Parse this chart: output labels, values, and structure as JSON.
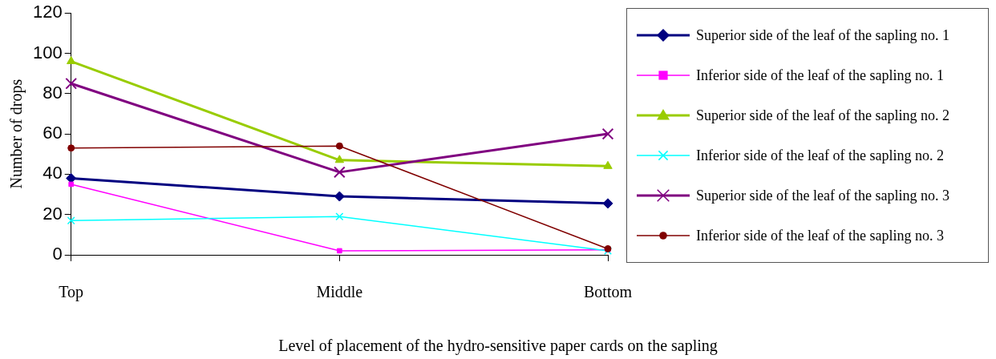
{
  "chart_data": {
    "type": "line",
    "xlabel": "Level of placement of the hydro-sensitive paper cards on the sapling",
    "ylabel": "Number of drops",
    "categories": [
      "Top",
      "Middle",
      "Bottom"
    ],
    "ylim": [
      0,
      120
    ],
    "yticks": [
      0,
      20,
      40,
      60,
      80,
      100,
      120
    ],
    "grid": false,
    "legend": "right",
    "series": [
      {
        "name": "Superior side of the leaf of the sapling no. 1",
        "color": "#000080",
        "marker": "diamond",
        "values": [
          38,
          29,
          25.5
        ]
      },
      {
        "name": "Inferior side of the leaf of the sapling no. 1",
        "color": "#ff00ff",
        "marker": "square",
        "values": [
          35,
          2,
          2.5
        ]
      },
      {
        "name": "Superior side of the leaf of the sapling no. 2",
        "color": "#99cc00",
        "marker": "triangle",
        "values": [
          96,
          47,
          44
        ]
      },
      {
        "name": "Inferior side of the leaf of the sapling no. 2",
        "color": "#00ffff",
        "marker": "cross",
        "values": [
          17,
          19,
          2
        ]
      },
      {
        "name": "Superior side of the leaf of the sapling no. 3",
        "color": "#800080",
        "marker": "cross",
        "values": [
          85,
          41,
          60
        ]
      },
      {
        "name": "Inferior side of the leaf of the sapling no. 3",
        "color": "#800000",
        "marker": "circle",
        "values": [
          53,
          54,
          3
        ]
      }
    ]
  }
}
